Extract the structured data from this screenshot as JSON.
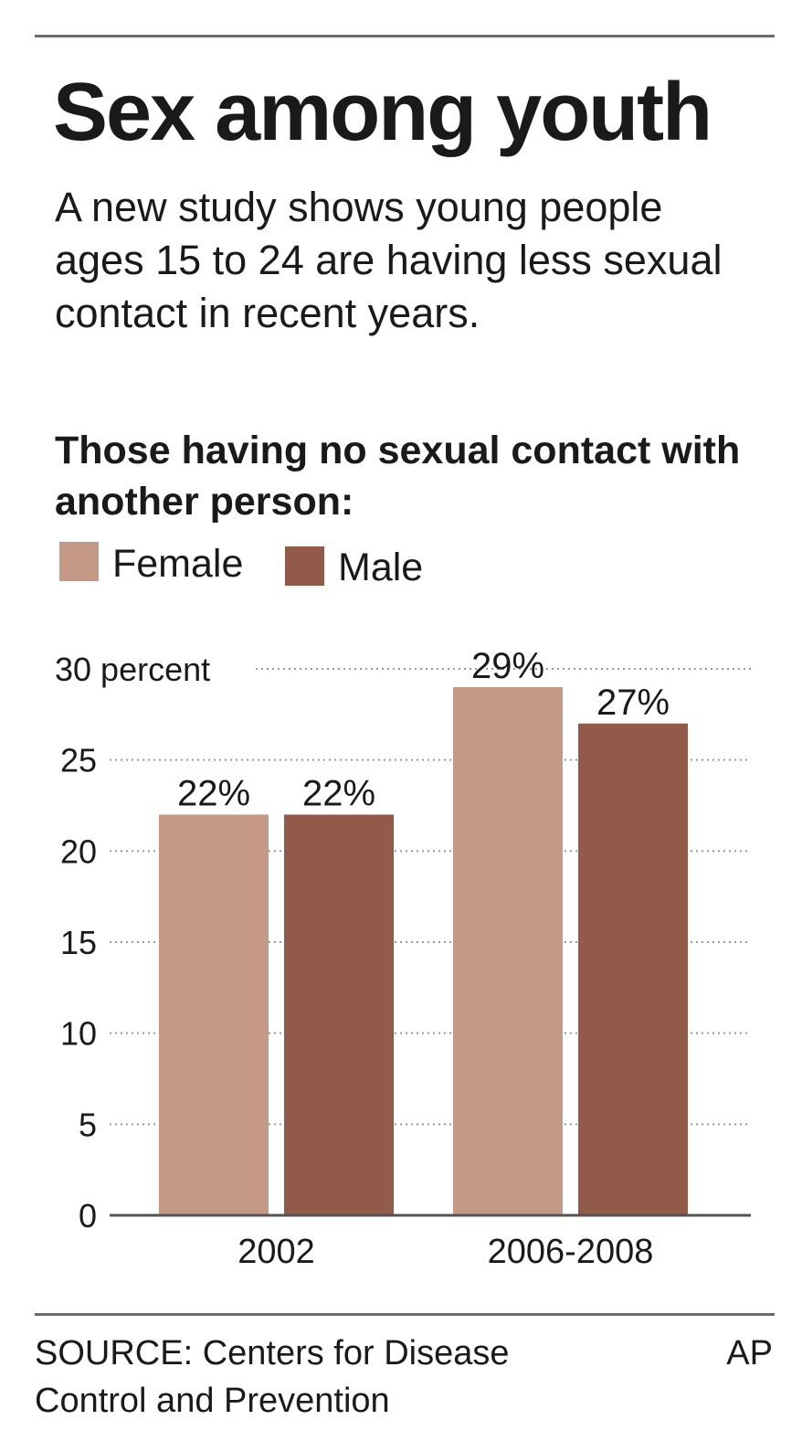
{
  "title": "Sex among youth",
  "subtitle": "A new study shows young people ages 15 to 24 are having less sexual contact in recent years.",
  "chart_heading": "Those having no sexual contact with another person:",
  "source": "SOURCE: Centers for Disease Control and Prevention",
  "credit": "AP",
  "colors": {
    "female": "#c49a86",
    "male": "#925b49",
    "grid": "#999999",
    "axis": "#555555"
  },
  "chart_data": {
    "type": "bar",
    "title": "Those having no sexual contact with another person:",
    "categories": [
      "2002",
      "2006-2008"
    ],
    "series": [
      {
        "name": "Female",
        "values": [
          22,
          29
        ],
        "labels": [
          "22%",
          "29%"
        ]
      },
      {
        "name": "Male",
        "values": [
          22,
          27
        ],
        "labels": [
          "22%",
          "27%"
        ]
      }
    ],
    "ylabel": "",
    "ylim": [
      0,
      30
    ],
    "yticks": [
      0,
      5,
      10,
      15,
      20,
      25,
      30
    ],
    "ytick_labels": [
      "0",
      "5",
      "10",
      "15",
      "20",
      "25",
      "30 percent"
    ],
    "grid": true,
    "legend_placement": "top-left"
  }
}
